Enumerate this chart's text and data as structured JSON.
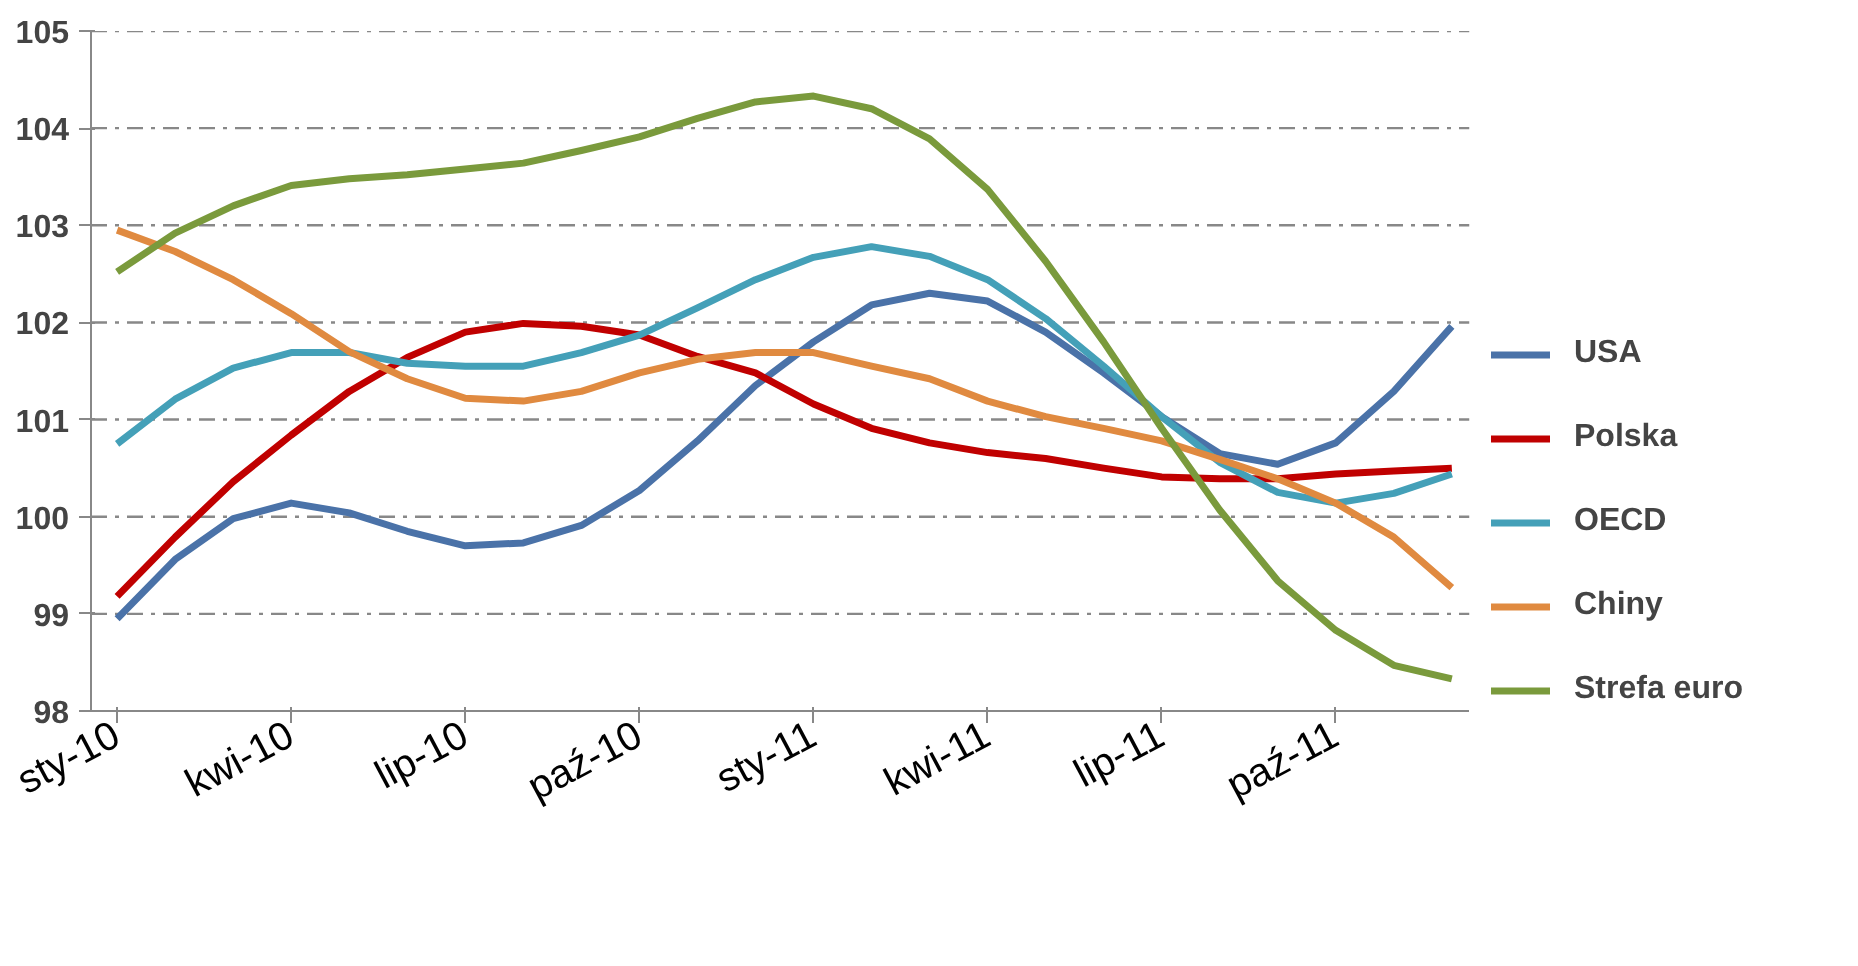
{
  "chart_data": {
    "type": "line",
    "categories": [
      "sty-10",
      null,
      null,
      "kwi-10",
      null,
      null,
      "lip-10",
      null,
      null,
      "paź-10",
      null,
      null,
      "sty-11",
      null,
      null,
      "kwi-11",
      null,
      null,
      "lip-11",
      null,
      null,
      "paź-11",
      null,
      null
    ],
    "series": [
      {
        "name": "USA",
        "color": "#4a72a8",
        "values": [
          98.95,
          99.56,
          99.98,
          100.14,
          100.04,
          99.85,
          99.7,
          99.73,
          99.91,
          100.27,
          100.78,
          101.35,
          101.8,
          102.18,
          102.3,
          102.22,
          101.9,
          101.48,
          101.03,
          100.65,
          100.54,
          100.76,
          101.29,
          101.96
        ]
      },
      {
        "name": "Polska",
        "color": "#c00000",
        "values": [
          99.18,
          99.79,
          100.36,
          100.84,
          101.29,
          101.64,
          101.9,
          101.99,
          101.96,
          101.87,
          101.65,
          101.48,
          101.16,
          100.91,
          100.76,
          100.66,
          100.6,
          100.5,
          100.41,
          100.39,
          100.39,
          100.44,
          100.47,
          100.5
        ]
      },
      {
        "name": "OECD",
        "color": "#44a0b8",
        "values": [
          100.75,
          101.21,
          101.53,
          101.69,
          101.69,
          101.58,
          101.55,
          101.55,
          101.69,
          101.87,
          102.15,
          102.44,
          102.67,
          102.78,
          102.68,
          102.44,
          102.04,
          101.55,
          101.03,
          100.56,
          100.25,
          100.14,
          100.24,
          100.44
        ]
      },
      {
        "name": "Chiny",
        "color": "#e08a40",
        "values": [
          102.95,
          102.73,
          102.44,
          102.09,
          101.7,
          101.42,
          101.22,
          101.19,
          101.29,
          101.48,
          101.62,
          101.69,
          101.69,
          101.55,
          101.42,
          101.19,
          101.03,
          100.91,
          100.78,
          100.59,
          100.39,
          100.14,
          99.79,
          99.27
        ]
      },
      {
        "name": "Strefa euro",
        "color": "#7a9a3c",
        "values": [
          102.52,
          102.92,
          103.2,
          103.41,
          103.48,
          103.52,
          103.58,
          103.64,
          103.77,
          103.91,
          104.1,
          104.27,
          104.33,
          104.2,
          103.89,
          103.37,
          102.63,
          101.8,
          100.91,
          100.07,
          99.34,
          98.83,
          98.47,
          98.33
        ]
      }
    ],
    "ylim": [
      98,
      105
    ],
    "yticks": [
      98,
      99,
      100,
      101,
      102,
      103,
      104,
      105
    ],
    "grid": "y",
    "legend": "right",
    "line_style": "solid",
    "marker": "none"
  }
}
